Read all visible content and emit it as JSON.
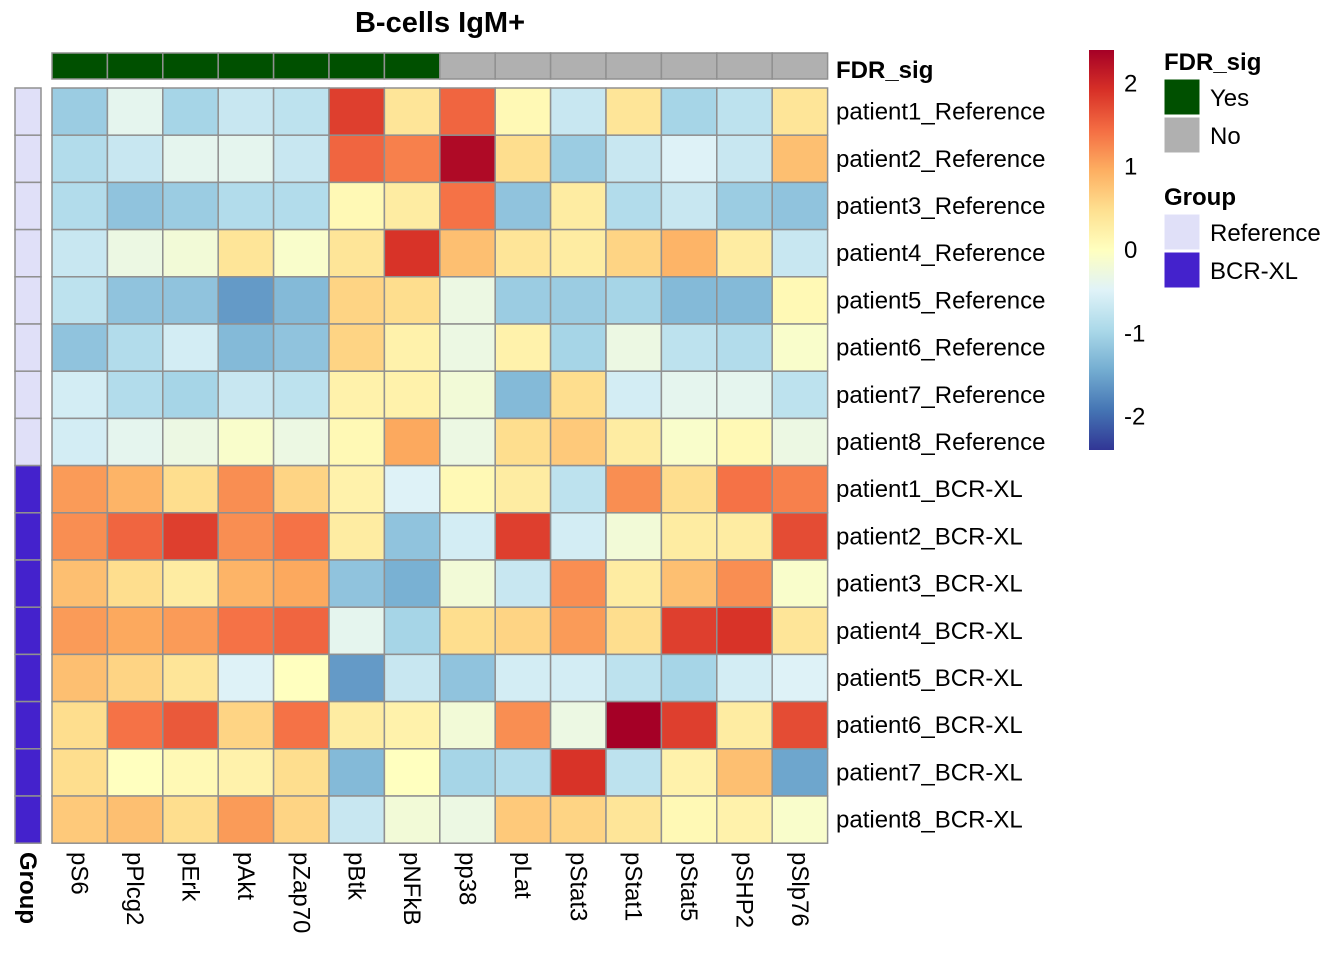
{
  "chart_data": {
    "type": "heatmap",
    "title": "B-cells IgM+",
    "columns": [
      "pS6",
      "pPlcg2",
      "pErk",
      "pAkt",
      "pZap70",
      "pBtk",
      "pNFkB",
      "pp38",
      "pLat",
      "pStat3",
      "pStat1",
      "pStat5",
      "pSHP2",
      "pSlp76"
    ],
    "rows": [
      "patient1_Reference",
      "patient2_Reference",
      "patient3_Reference",
      "patient4_Reference",
      "patient5_Reference",
      "patient6_Reference",
      "patient7_Reference",
      "patient8_Reference",
      "patient1_BCR-XL",
      "patient2_BCR-XL",
      "patient3_BCR-XL",
      "patient4_BCR-XL",
      "patient5_BCR-XL",
      "patient6_BCR-XL",
      "patient7_BCR-XL",
      "patient8_BCR-XL"
    ],
    "values": [
      [
        -1.1,
        -0.4,
        -1.0,
        -0.7,
        -0.8,
        1.8,
        0.4,
        1.5,
        0.1,
        -0.7,
        0.4,
        -1.0,
        -0.8,
        0.4
      ],
      [
        -0.9,
        -0.7,
        -0.4,
        -0.4,
        -0.7,
        1.5,
        1.3,
        2.3,
        0.5,
        -1.1,
        -0.7,
        -0.5,
        -0.7,
        0.8
      ],
      [
        -0.9,
        -1.2,
        -1.1,
        -0.9,
        -0.9,
        0.1,
        0.3,
        1.4,
        -1.2,
        0.3,
        -0.9,
        -0.7,
        -1.1,
        -1.2
      ],
      [
        -0.7,
        -0.3,
        -0.2,
        0.4,
        -0.1,
        0.4,
        1.9,
        0.8,
        0.4,
        0.3,
        0.6,
        0.9,
        0.3,
        -0.7
      ],
      [
        -0.8,
        -1.2,
        -1.2,
        -1.6,
        -1.3,
        0.6,
        0.5,
        -0.3,
        -1.1,
        -1.1,
        -1.0,
        -1.3,
        -1.3,
        0.1
      ],
      [
        -1.2,
        -0.9,
        -0.6,
        -1.3,
        -1.2,
        0.6,
        0.2,
        -0.3,
        0.2,
        -1.0,
        -0.3,
        -0.8,
        -0.9,
        -0.1
      ],
      [
        -0.6,
        -0.9,
        -1.0,
        -0.7,
        -0.8,
        0.2,
        0.2,
        -0.2,
        -1.3,
        0.5,
        -0.6,
        -0.4,
        -0.4,
        -0.8
      ],
      [
        -0.6,
        -0.4,
        -0.3,
        -0.1,
        -0.3,
        0.1,
        1.0,
        -0.3,
        0.5,
        0.7,
        0.3,
        -0.1,
        0.1,
        -0.3
      ],
      [
        1.1,
        0.9,
        0.5,
        1.2,
        0.6,
        0.2,
        -0.5,
        0.1,
        0.3,
        -0.8,
        1.2,
        0.5,
        1.4,
        1.3
      ],
      [
        1.2,
        1.5,
        1.8,
        1.2,
        1.4,
        0.3,
        -1.2,
        -0.6,
        1.8,
        -0.6,
        -0.2,
        0.3,
        0.3,
        1.7
      ],
      [
        0.8,
        0.5,
        0.3,
        0.9,
        1.0,
        -1.2,
        -1.4,
        -0.2,
        -0.7,
        1.2,
        0.3,
        0.8,
        1.2,
        -0.1
      ],
      [
        1.1,
        1.0,
        1.1,
        1.4,
        1.5,
        -0.4,
        -1.0,
        0.5,
        0.6,
        1.1,
        0.5,
        1.8,
        1.9,
        0.4
      ],
      [
        0.8,
        0.6,
        0.4,
        -0.5,
        0.0,
        -1.6,
        -0.7,
        -1.2,
        -0.6,
        -0.6,
        -0.8,
        -1.0,
        -0.6,
        -0.5
      ],
      [
        0.5,
        1.4,
        1.6,
        0.6,
        1.4,
        0.3,
        0.2,
        -0.2,
        1.2,
        -0.3,
        2.4,
        1.8,
        0.3,
        1.7
      ],
      [
        0.5,
        0.0,
        0.1,
        0.2,
        0.5,
        -1.3,
        0.0,
        -1.0,
        -0.9,
        1.9,
        -0.8,
        0.2,
        0.8,
        -1.5
      ],
      [
        0.7,
        0.8,
        0.5,
        1.1,
        0.6,
        -0.7,
        -0.2,
        -0.3,
        0.7,
        0.6,
        0.4,
        0.1,
        0.2,
        -0.1
      ]
    ],
    "col_annotation": {
      "name": "FDR_sig",
      "values": [
        "Yes",
        "Yes",
        "Yes",
        "Yes",
        "Yes",
        "Yes",
        "Yes",
        "No",
        "No",
        "No",
        "No",
        "No",
        "No",
        "No"
      ]
    },
    "row_annotation": {
      "name": "Group",
      "values": [
        "Reference",
        "Reference",
        "Reference",
        "Reference",
        "Reference",
        "Reference",
        "Reference",
        "Reference",
        "BCR-XL",
        "BCR-XL",
        "BCR-XL",
        "BCR-XL",
        "BCR-XL",
        "BCR-XL",
        "BCR-XL",
        "BCR-XL"
      ]
    },
    "color_scale": {
      "range": [
        -2.4,
        2.4
      ],
      "ticks": [
        2,
        1,
        0,
        -1,
        -2
      ],
      "tick_labels": [
        "2",
        "1",
        "0",
        "-1",
        "-2"
      ],
      "stops": [
        "#313695",
        "#4575b4",
        "#74add1",
        "#abd9e9",
        "#e0f3f8",
        "#ffffbf",
        "#fee090",
        "#fdae61",
        "#f46d43",
        "#d73027",
        "#a50026"
      ]
    },
    "legends": [
      {
        "title": "FDR_sig",
        "items": [
          {
            "label": "Yes",
            "color": "#005000"
          },
          {
            "label": "No",
            "color": "#b0b0b0"
          }
        ]
      },
      {
        "title": "Group",
        "items": [
          {
            "label": "Reference",
            "color": "#e0e0f8"
          },
          {
            "label": "BCR-XL",
            "color": "#4422cc"
          }
        ]
      }
    ],
    "colors": {
      "fdr_yes": "#005000",
      "fdr_no": "#b0b0b0",
      "group_reference": "#e0e0f8",
      "group_bcrxl": "#4422cc",
      "cell_border": "#909090"
    }
  }
}
